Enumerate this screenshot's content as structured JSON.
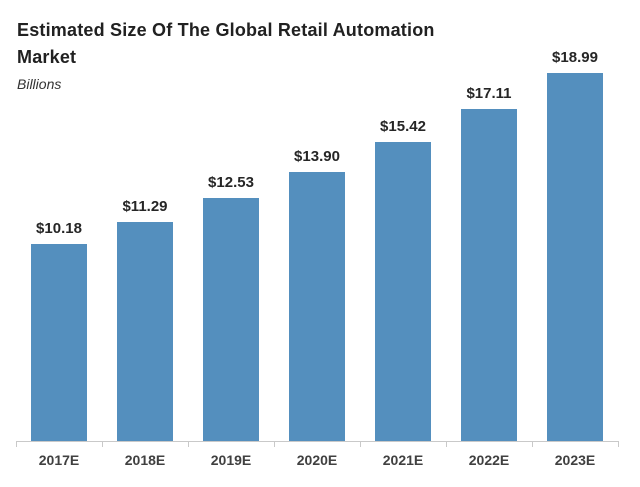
{
  "header": {
    "title_line1": "Estimated Size Of The Global Retail Automation",
    "title_line2": "Market",
    "subtitle": "Billions"
  },
  "chart_data": {
    "type": "bar",
    "title": "Estimated Size Of The Global Retail Automation Market",
    "subtitle": "Billions",
    "unit": "USD billions",
    "categories": [
      "2017E",
      "2018E",
      "2019E",
      "2020E",
      "2021E",
      "2022E",
      "2023E"
    ],
    "values": [
      10.18,
      11.29,
      12.53,
      13.9,
      15.42,
      17.11,
      18.99
    ],
    "value_labels": [
      "$10.18",
      "$11.29",
      "$12.53",
      "$13.90",
      "$15.42",
      "$17.11",
      "$18.99"
    ],
    "ylim": [
      0,
      18.99
    ],
    "grid": false,
    "legend": false,
    "y_axis_visible": false,
    "colors": {
      "bar": "#548FBE",
      "axis_line": "#C9C9C9",
      "value_label": "#262626",
      "category_label": "#404040",
      "title": "#212121",
      "background": "#FFFFFF"
    }
  }
}
